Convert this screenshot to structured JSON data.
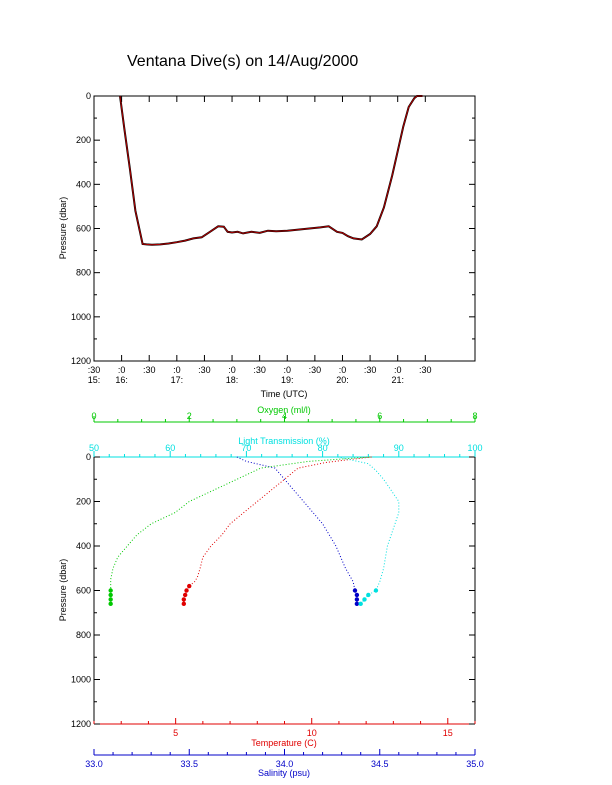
{
  "title": "Ventana Dive(s) on 14/Aug/2000",
  "colors": {
    "pressure_trace": "#b00000",
    "temperature": "#e00000",
    "salinity": "#0000c8",
    "oxygen": "#00c800",
    "light_transmission": "#00e0e0",
    "axis": "#000000"
  },
  "chart_data": [
    {
      "type": "line",
      "title": "Ventana Dive(s) on 14/Aug/2000",
      "xlabel": "Time (UTC)",
      "ylabel": "Pressure (dbar)",
      "x_tick_labels": [
        ":30",
        ":0",
        ":30",
        ":0",
        ":30",
        ":0",
        ":30",
        ":0",
        ":30",
        ":0",
        ":30",
        ":0",
        ":30"
      ],
      "x_hour_labels": [
        "15:",
        "16:",
        "17:",
        "18:",
        "19:",
        "20:",
        "21:"
      ],
      "y_ticks": [
        0,
        200,
        400,
        600,
        800,
        1000,
        1200
      ],
      "ylim": [
        1200,
        0
      ],
      "xlim_hours": [
        15.5,
        22.4
      ],
      "series": [
        {
          "x_hours": [
            15.97,
            16.05,
            16.15,
            16.25,
            16.38,
            16.45,
            16.55,
            16.7,
            16.85,
            17.0,
            17.15,
            17.3,
            17.45,
            17.6,
            17.75,
            17.85,
            17.92,
            18.0,
            18.1,
            18.2,
            18.35,
            18.5,
            18.65,
            18.8,
            19.0,
            19.2,
            19.4,
            19.6,
            19.75,
            19.9,
            20.0,
            20.1,
            20.2,
            20.35,
            20.5,
            20.62,
            20.75,
            20.9,
            21.0,
            21.1,
            21.2,
            21.3,
            21.35,
            21.45
          ],
          "pressure": [
            0,
            150,
            330,
            520,
            670,
            672,
            674,
            672,
            668,
            662,
            655,
            645,
            640,
            615,
            590,
            592,
            615,
            618,
            615,
            622,
            615,
            620,
            610,
            612,
            610,
            605,
            600,
            595,
            590,
            615,
            620,
            635,
            645,
            650,
            625,
            590,
            505,
            360,
            250,
            140,
            50,
            10,
            0,
            0
          ]
        }
      ]
    },
    {
      "type": "scatter",
      "ylabel": "Pressure (dbar)",
      "y_ticks": [
        0,
        200,
        400,
        600,
        800,
        1000,
        1200
      ],
      "ylim": [
        1200,
        0
      ],
      "axes": {
        "oxygen": {
          "label": "Oxygen (ml/l)",
          "range": [
            0,
            8
          ],
          "ticks": [
            0,
            2,
            4,
            6,
            8
          ]
        },
        "light_transmission": {
          "label": "Light Transmission (%)",
          "range": [
            50,
            100
          ],
          "ticks": [
            50,
            60,
            70,
            80,
            90,
            100
          ]
        },
        "temperature": {
          "label": "Temperature (C)",
          "range": [
            2,
            16
          ],
          "ticks": [
            5,
            10,
            15
          ]
        },
        "salinity": {
          "label": "Salinity (psu)",
          "range": [
            33.0,
            35.0
          ],
          "ticks": [
            "33.0",
            "33.5",
            "34.0",
            "34.5",
            "35.0"
          ]
        }
      },
      "series": [
        {
          "name": "Temperature (C)",
          "pressure": [
            0,
            10,
            25,
            50,
            80,
            100,
            150,
            200,
            250,
            300,
            350,
            400,
            450,
            500,
            540,
            560,
            580,
            600,
            620,
            640,
            660
          ],
          "values": [
            12.2,
            11.5,
            10.5,
            9.5,
            9.2,
            9.0,
            8.5,
            8.0,
            7.5,
            7.0,
            6.7,
            6.3,
            6.0,
            5.9,
            5.8,
            5.7,
            5.5,
            5.4,
            5.35,
            5.3,
            5.3
          ]
        },
        {
          "name": "Salinity (psu)",
          "pressure": [
            0,
            20,
            50,
            100,
            150,
            200,
            300,
            400,
            500,
            560,
            600,
            620,
            640,
            660
          ],
          "values": [
            33.75,
            33.8,
            33.95,
            34.0,
            34.05,
            34.1,
            34.2,
            34.27,
            34.32,
            34.36,
            34.37,
            34.38,
            34.38,
            34.38
          ]
        },
        {
          "name": "Oxygen (ml/l)",
          "pressure": [
            0,
            20,
            50,
            100,
            150,
            200,
            250,
            300,
            350,
            400,
            450,
            500,
            550,
            600,
            620,
            640,
            660
          ],
          "values": [
            5.8,
            4.5,
            3.5,
            3.0,
            2.5,
            2.0,
            1.7,
            1.2,
            0.9,
            0.7,
            0.5,
            0.4,
            0.35,
            0.35,
            0.35,
            0.35,
            0.35
          ]
        },
        {
          "name": "Light Transmission (%)",
          "pressure": [
            0,
            30,
            60,
            100,
            150,
            200,
            250,
            300,
            400,
            500,
            560,
            600,
            620,
            640,
            660
          ],
          "values": [
            82,
            86,
            87,
            88,
            89,
            90,
            90,
            89.5,
            88.5,
            88,
            87.5,
            87,
            86,
            85.5,
            85
          ]
        }
      ]
    }
  ]
}
